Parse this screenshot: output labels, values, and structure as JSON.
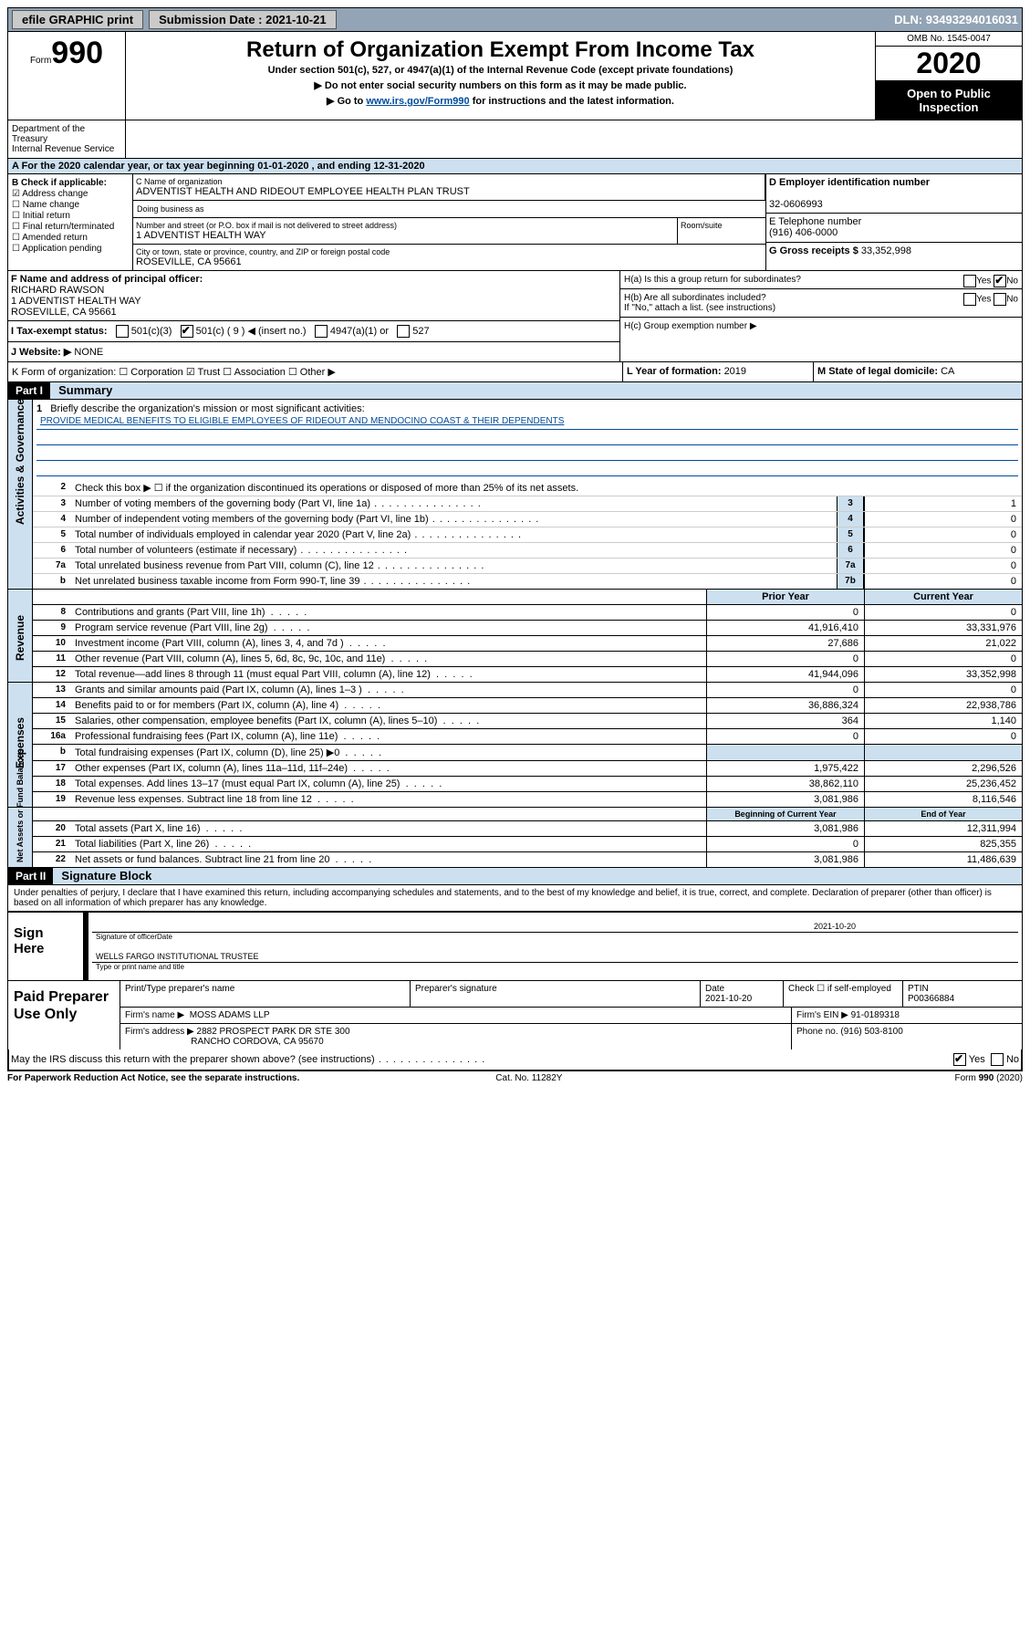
{
  "topbar": {
    "efile_label": "efile GRAPHIC print",
    "submission_label": "Submission Date : 2021-10-21",
    "dln_label": "DLN: 93493294016031"
  },
  "header": {
    "form_word": "Form",
    "form_number": "990",
    "dept": "Department of the Treasury\nInternal Revenue Service",
    "title": "Return of Organization Exempt From Income Tax",
    "subtitle": "Under section 501(c), 527, or 4947(a)(1) of the Internal Revenue Code (except private foundations)",
    "arrow1": "▶ Do not enter social security numbers on this form as it may be made public.",
    "arrow2_pre": "▶ Go to ",
    "arrow2_link": "www.irs.gov/Form990",
    "arrow2_post": " for instructions and the latest information.",
    "omb": "OMB No. 1545-0047",
    "year": "2020",
    "open_inspection": "Open to Public Inspection"
  },
  "rowA": "A For the 2020 calendar year, or tax year beginning 01-01-2020    , and ending 12-31-2020",
  "boxB": {
    "title": "B Check if applicable:",
    "opts": [
      "Address change",
      "Name change",
      "Initial return",
      "Final return/terminated",
      "Amended return",
      "Application pending"
    ],
    "checked_idx": 0
  },
  "boxC": {
    "name_label": "C Name of organization",
    "name": "ADVENTIST HEALTH AND RIDEOUT EMPLOYEE HEALTH PLAN TRUST",
    "dba_label": "Doing business as",
    "addr_label": "Number and street (or P.O. box if mail is not delivered to street address)",
    "room_label": "Room/suite",
    "addr": "1 ADVENTIST HEALTH WAY",
    "city_label": "City or town, state or province, country, and ZIP or foreign postal code",
    "city": "ROSEVILLE, CA  95661"
  },
  "boxD": {
    "label": "D Employer identification number",
    "value": "32-0606993"
  },
  "boxE": {
    "label": "E Telephone number",
    "value": "(916) 406-0000"
  },
  "boxG": {
    "label": "G Gross receipts $ ",
    "value": "33,352,998"
  },
  "boxF": {
    "label": "F Name and address of principal officer:",
    "name": "RICHARD RAWSON",
    "addr1": "1 ADVENTIST HEALTH WAY",
    "addr2": "ROSEVILLE, CA  95661"
  },
  "boxH": {
    "ha": "H(a)  Is this a group return for subordinates?",
    "hb": "H(b)  Are all subordinates included?",
    "hb_note": "If \"No,\" attach a list. (see instructions)",
    "hc": "H(c)  Group exemption number ▶",
    "yes": "Yes",
    "no": "No"
  },
  "boxI": {
    "label": "I  Tax-exempt status:",
    "opts": [
      "501(c)(3)",
      "501(c) ( 9 ) ◀ (insert no.)",
      "4947(a)(1) or",
      "527"
    ],
    "checked_idx": 1
  },
  "boxJ": {
    "label": "J  Website: ▶",
    "value": " NONE"
  },
  "boxK": "K Form of organization:    ☐ Corporation   ☑ Trust   ☐ Association   ☐ Other ▶",
  "boxL": {
    "label": "L Year of formation: ",
    "value": "2019"
  },
  "boxM": {
    "label": "M State of legal domicile: ",
    "value": "CA"
  },
  "part1": {
    "label": "Part I",
    "title": "Summary"
  },
  "mission": {
    "q": "Briefly describe the organization's mission or most significant activities:",
    "text": "PROVIDE MEDICAL BENEFITS TO ELIGIBLE EMPLOYEES OF RIDEOUT AND MENDOCINO COAST & THEIR DEPENDENTS"
  },
  "ag_lines": {
    "l2": "Check this box ▶ ☐  if the organization discontinued its operations or disposed of more than 25% of its net assets.",
    "l3": {
      "t": "Number of voting members of the governing body (Part VI, line 1a)",
      "b": "3",
      "v": "1"
    },
    "l4": {
      "t": "Number of independent voting members of the governing body (Part VI, line 1b)",
      "b": "4",
      "v": "0"
    },
    "l5": {
      "t": "Total number of individuals employed in calendar year 2020 (Part V, line 2a)",
      "b": "5",
      "v": "0"
    },
    "l6": {
      "t": "Total number of volunteers (estimate if necessary)",
      "b": "6",
      "v": "0"
    },
    "l7a": {
      "t": "Total unrelated business revenue from Part VIII, column (C), line 12",
      "b": "7a",
      "v": "0"
    },
    "l7b": {
      "t": "Net unrelated business taxable income from Form 990-T, line 39",
      "b": "7b",
      "v": "0"
    }
  },
  "rev_hdr": {
    "prior": "Prior Year",
    "curr": "Current Year"
  },
  "revenue": [
    {
      "n": "8",
      "t": "Contributions and grants (Part VIII, line 1h)",
      "p": "0",
      "c": "0"
    },
    {
      "n": "9",
      "t": "Program service revenue (Part VIII, line 2g)",
      "p": "41,916,410",
      "c": "33,331,976"
    },
    {
      "n": "10",
      "t": "Investment income (Part VIII, column (A), lines 3, 4, and 7d )",
      "p": "27,686",
      "c": "21,022"
    },
    {
      "n": "11",
      "t": "Other revenue (Part VIII, column (A), lines 5, 6d, 8c, 9c, 10c, and 11e)",
      "p": "0",
      "c": "0"
    },
    {
      "n": "12",
      "t": "Total revenue—add lines 8 through 11 (must equal Part VIII, column (A), line 12)",
      "p": "41,944,096",
      "c": "33,352,998"
    }
  ],
  "expenses": [
    {
      "n": "13",
      "t": "Grants and similar amounts paid (Part IX, column (A), lines 1–3 )",
      "p": "0",
      "c": "0"
    },
    {
      "n": "14",
      "t": "Benefits paid to or for members (Part IX, column (A), line 4)",
      "p": "36,886,324",
      "c": "22,938,786"
    },
    {
      "n": "15",
      "t": "Salaries, other compensation, employee benefits (Part IX, column (A), lines 5–10)",
      "p": "364",
      "c": "1,140"
    },
    {
      "n": "16a",
      "t": "Professional fundraising fees (Part IX, column (A), line 11e)",
      "p": "0",
      "c": "0"
    },
    {
      "n": "b",
      "t": "Total fundraising expenses (Part IX, column (D), line 25) ▶0",
      "p": "",
      "c": "",
      "grey": true
    },
    {
      "n": "17",
      "t": "Other expenses (Part IX, column (A), lines 11a–11d, 11f–24e)",
      "p": "1,975,422",
      "c": "2,296,526"
    },
    {
      "n": "18",
      "t": "Total expenses. Add lines 13–17 (must equal Part IX, column (A), line 25)",
      "p": "38,862,110",
      "c": "25,236,452"
    },
    {
      "n": "19",
      "t": "Revenue less expenses. Subtract line 18 from line 12",
      "p": "3,081,986",
      "c": "8,116,546"
    }
  ],
  "na_hdr": {
    "prior": "Beginning of Current Year",
    "curr": "End of Year"
  },
  "netassets": [
    {
      "n": "20",
      "t": "Total assets (Part X, line 16)",
      "p": "3,081,986",
      "c": "12,311,994"
    },
    {
      "n": "21",
      "t": "Total liabilities (Part X, line 26)",
      "p": "0",
      "c": "825,355"
    },
    {
      "n": "22",
      "t": "Net assets or fund balances. Subtract line 21 from line 20",
      "p": "3,081,986",
      "c": "11,486,639"
    }
  ],
  "part2": {
    "label": "Part II",
    "title": "Signature Block"
  },
  "perjury": "Under penalties of perjury, I declare that I have examined this return, including accompanying schedules and statements, and to the best of my knowledge and belief, it is true, correct, and complete. Declaration of preparer (other than officer) is based on all information of which preparer has any knowledge.",
  "sign": {
    "here": "Sign Here",
    "sig_of_officer": "Signature of officer",
    "date_label": "Date",
    "date": "2021-10-20",
    "typed_name": "WELLS FARGO  INSTITUTIONAL TRUSTEE",
    "typed_hint": "Type or print name and title"
  },
  "paid": {
    "title": "Paid Preparer Use Only",
    "h_name": "Print/Type preparer's name",
    "h_sig": "Preparer's signature",
    "h_date": "Date",
    "date": "2021-10-20",
    "h_check": "Check ☐ if self-employed",
    "h_ptin": "PTIN",
    "ptin": "P00366884",
    "firm_name_l": "Firm's name    ▶",
    "firm_name": "MOSS ADAMS LLP",
    "firm_ein_l": "Firm's EIN ▶",
    "firm_ein": "91-0189318",
    "firm_addr_l": "Firm's address ▶",
    "firm_addr1": "2882 PROSPECT PARK DR STE 300",
    "firm_addr2": "RANCHO CORDOVA, CA  95670",
    "phone_l": "Phone no.",
    "phone": "(916) 503-8100"
  },
  "discuss": "May the IRS discuss this return with the preparer shown above? (see instructions)",
  "footer": {
    "pra": "For Paperwork Reduction Act Notice, see the separate instructions.",
    "cat": "Cat. No. 11282Y",
    "form": "Form 990 (2020)"
  },
  "tabs": {
    "ag": "Activities & Governance",
    "rev": "Revenue",
    "exp": "Expenses",
    "na": "Net Assets or Fund Balances"
  }
}
